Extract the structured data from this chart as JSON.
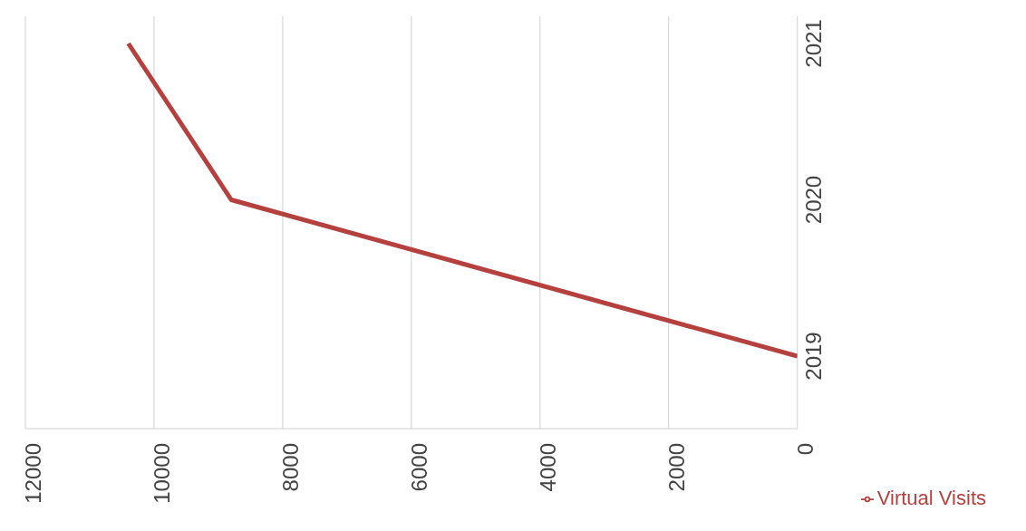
{
  "chart_data": {
    "type": "line",
    "orientation": "horizontal",
    "categories": [
      "2021",
      "2020",
      "2019"
    ],
    "series": [
      {
        "name": "Virtual Visits",
        "color": "#b5413f",
        "values": [
          10400,
          8800,
          0
        ]
      }
    ],
    "xlim": [
      12000,
      0
    ],
    "xticks": [
      0,
      2000,
      4000,
      6000,
      8000,
      10000,
      12000
    ],
    "grid": "x",
    "legend": "bottom right",
    "marker": "none",
    "line_style": "solid"
  }
}
